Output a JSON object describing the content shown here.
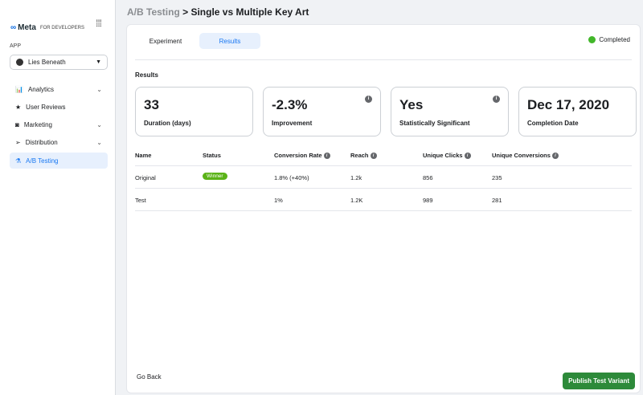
{
  "sidebar": {
    "logo": "Meta",
    "logo_sub": "FOR DEVELOPERS",
    "app_label": "APP",
    "app_select": "Lies Beneath",
    "items": [
      {
        "label": "Analytics",
        "icon": "bar-chart-icon",
        "chev": true
      },
      {
        "label": "User Reviews",
        "icon": "star-icon"
      },
      {
        "label": "Marketing",
        "icon": "megaphone-icon",
        "chev": true
      },
      {
        "label": "Distribution",
        "icon": "paper-plane-icon",
        "chev": true
      },
      {
        "label": "A/B Testing",
        "icon": "flask-icon",
        "active": true
      }
    ]
  },
  "header": {
    "crumb": "A/B Testing",
    "title": "> Single vs Multiple Key Art"
  },
  "tabs": [
    "Experiment",
    "Results"
  ],
  "status": "Completed",
  "status_color": "#42b72a",
  "results_heading": "Results",
  "stats": [
    {
      "value": "33",
      "label": "Duration (days)"
    },
    {
      "value": "-2.3%",
      "label": "Improvement"
    },
    {
      "value": "Yes",
      "label": "Statistically Significant"
    },
    {
      "value": "Dec 17, 2020",
      "label": "Completion Date"
    }
  ],
  "table": {
    "headers": [
      "Name",
      "Status",
      "Conversion Rate",
      "Reach",
      "Unique Clicks",
      "Unique Conversions"
    ],
    "rows": [
      [
        "Original",
        "Winner",
        "1.8% (+40%)",
        "1.2k",
        "856",
        "235"
      ],
      [
        "Test",
        "",
        "1%",
        "1.2K",
        "989",
        "281"
      ]
    ]
  },
  "footer": {
    "back": "Go Back",
    "publish": "Publish Test Variant"
  }
}
